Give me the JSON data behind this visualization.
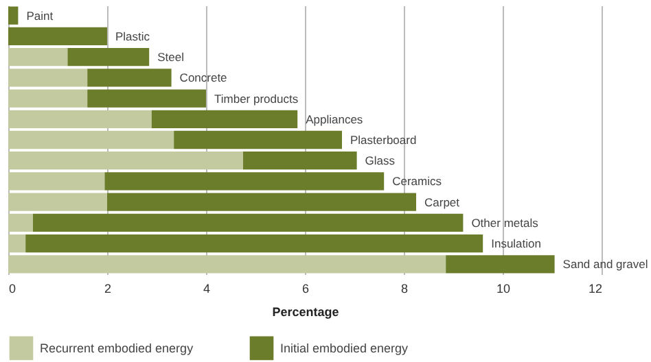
{
  "chart_data": {
    "type": "bar",
    "orientation": "horizontal",
    "stacked": true,
    "xlabel": "Percentage",
    "categories": [
      "Paint",
      "Plastic",
      "Steel",
      "Concrete",
      "Timber products",
      "Appliances",
      "Plasterboard",
      "Glass",
      "Ceramics",
      "Carpet",
      "Other metals",
      "Insulation",
      "Sand and gravel"
    ],
    "series": [
      {
        "name": "Recurrent embodied energy",
        "color": "#c3caa0",
        "values": [
          0,
          0,
          1.2,
          1.6,
          1.6,
          2.9,
          3.35,
          4.75,
          1.95,
          2.0,
          0.5,
          0.35,
          8.85
        ]
      },
      {
        "name": "Initial embodied energy",
        "color": "#6b7d2b",
        "values": [
          0.2,
          2.0,
          1.65,
          1.7,
          2.4,
          2.95,
          3.4,
          2.3,
          5.65,
          6.25,
          8.7,
          9.25,
          2.2
        ]
      }
    ],
    "xlim": [
      0,
      12
    ],
    "xticks": [
      0,
      2,
      4,
      6,
      8,
      10,
      12
    ],
    "grid": "x",
    "tick_labels": "x",
    "legend": "bottom left"
  }
}
